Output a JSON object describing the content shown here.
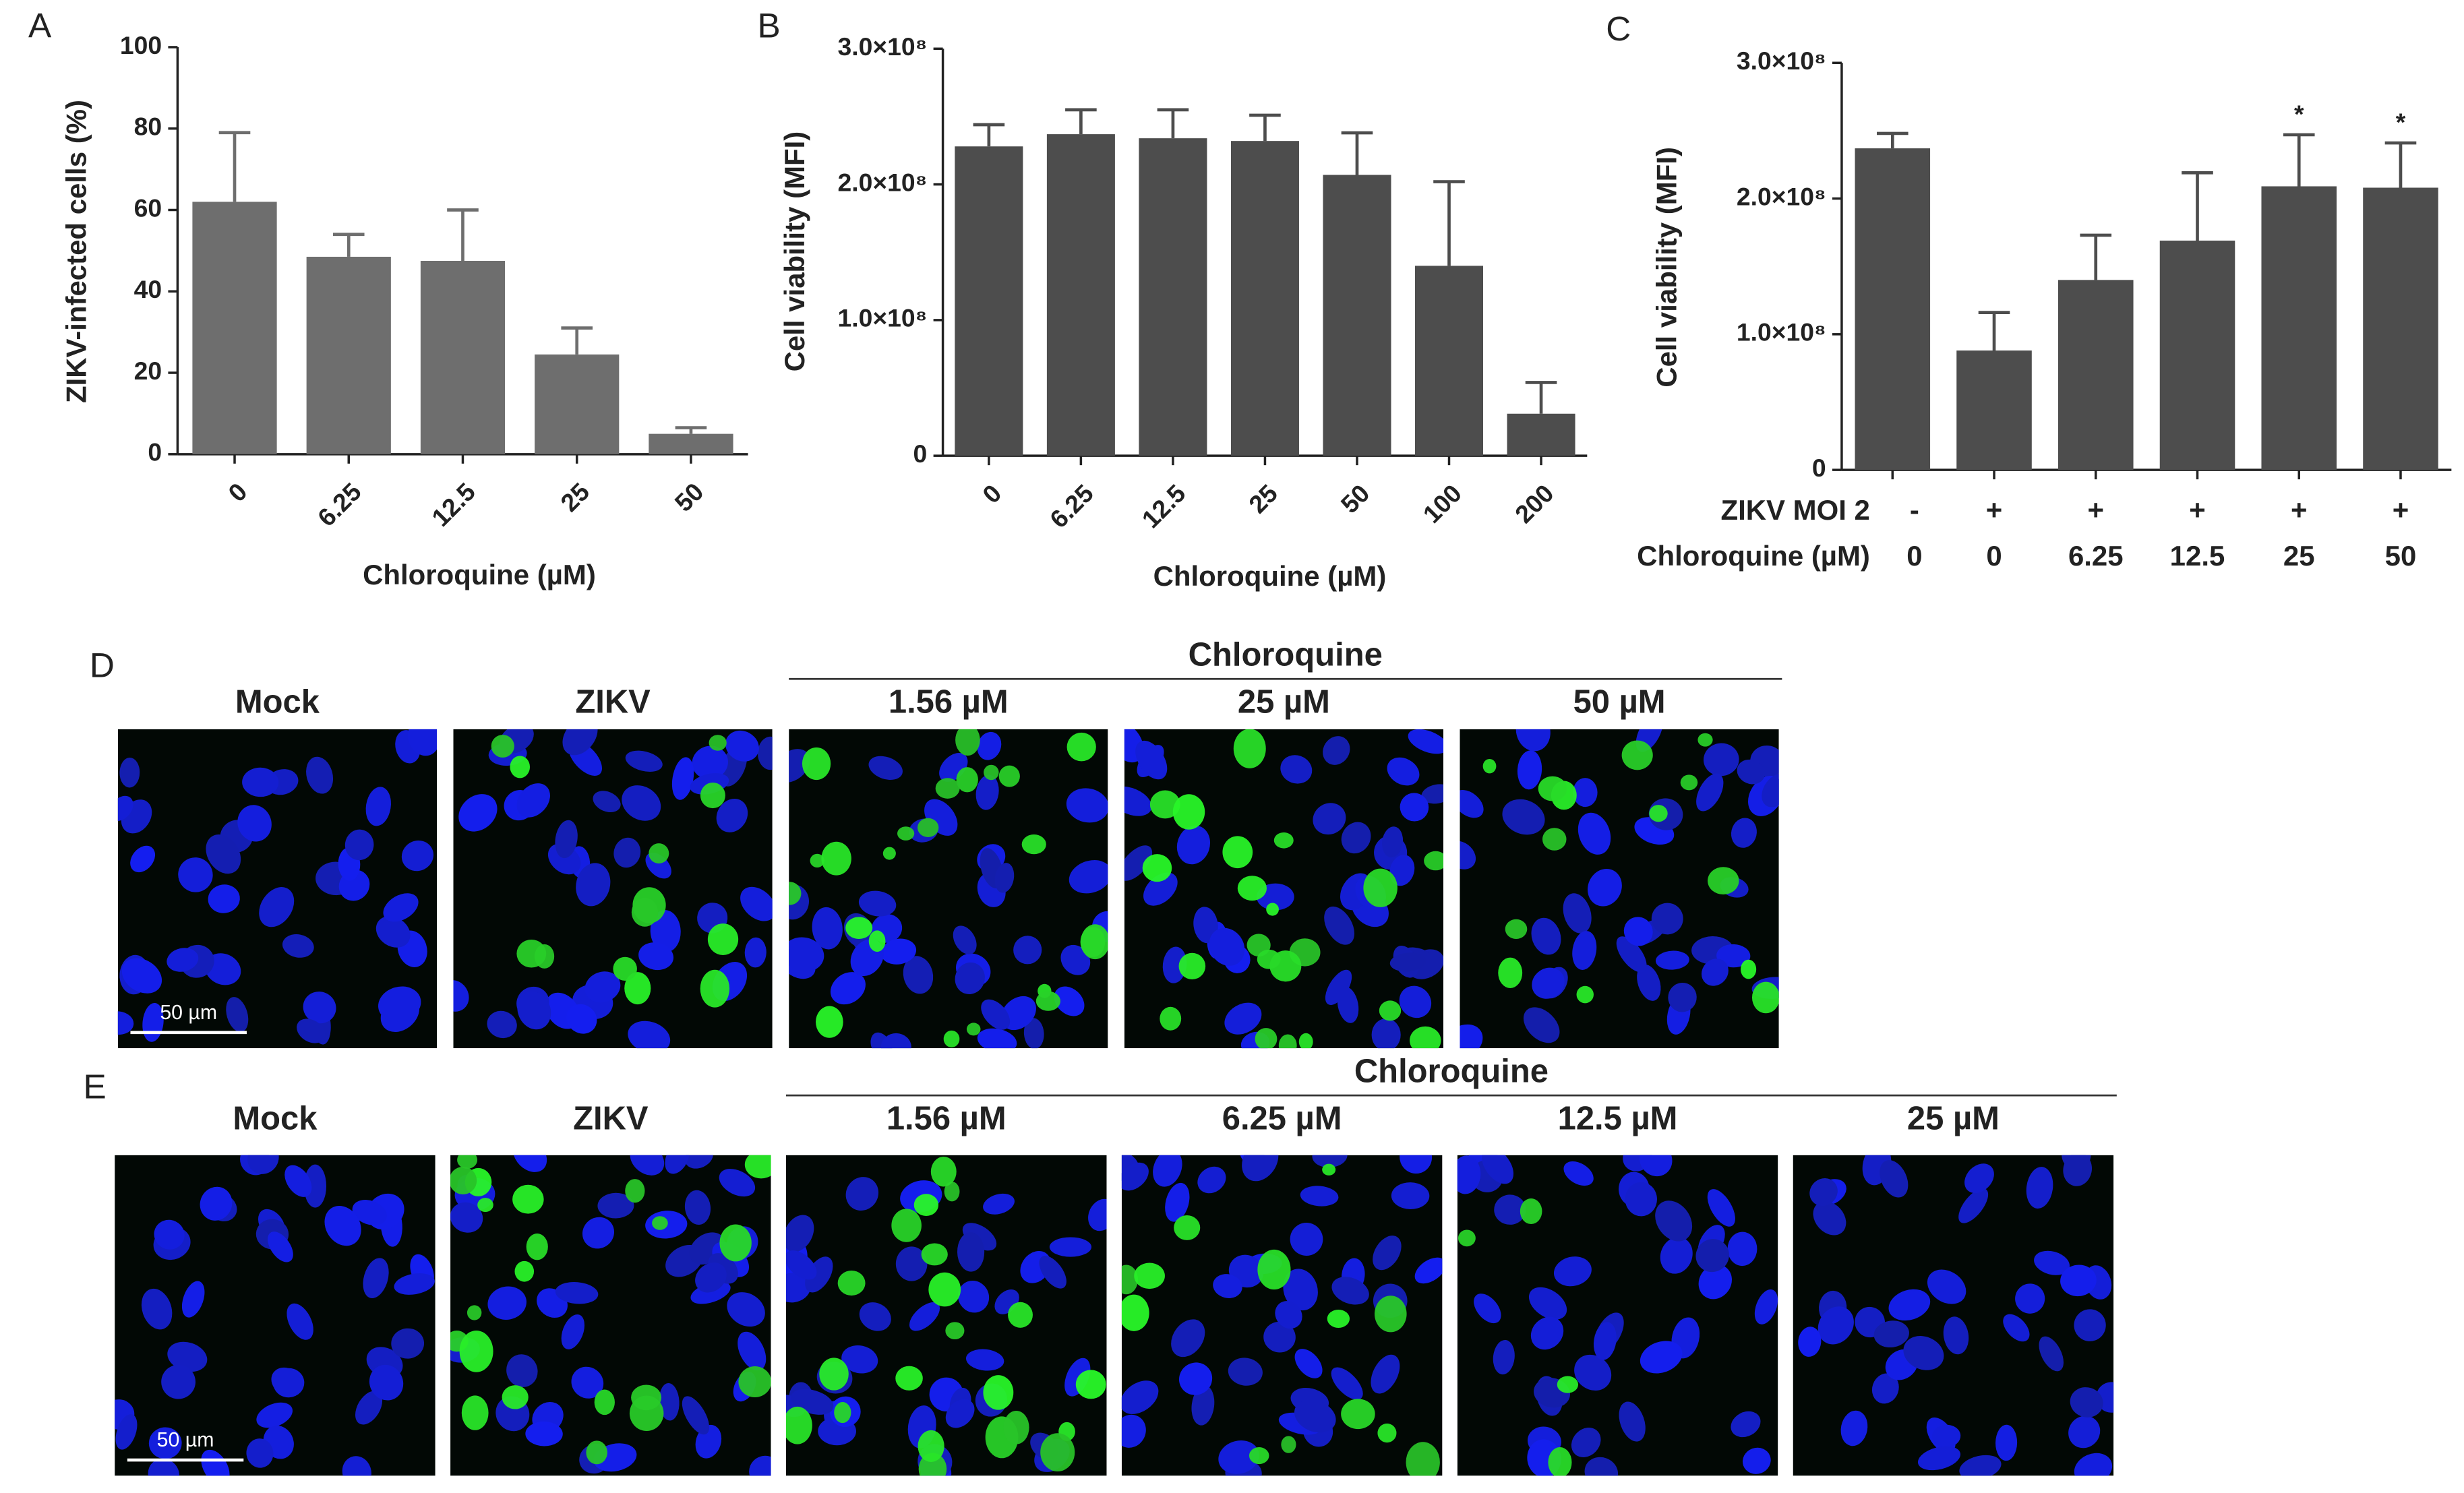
{
  "chart_data": [
    {
      "type": "bar",
      "panel": "A",
      "y_label": "ZIKV-infected cells (%)",
      "x_label": "Chloroquine (µM)",
      "categories": [
        "0",
        "6.25",
        "12.5",
        "25",
        "50"
      ],
      "values": [
        62,
        48.5,
        47.5,
        24.5,
        5
      ],
      "errors": [
        17,
        5.5,
        12.5,
        6.5,
        1.5
      ],
      "color": "#6e6e6e",
      "ylim": [
        0,
        100
      ],
      "yticks": [
        0,
        20,
        40,
        60,
        80,
        100
      ]
    },
    {
      "type": "bar",
      "panel": "B",
      "y_label": "Cell viability (MFI)",
      "x_label": "Chloroquine (µM)",
      "categories": [
        "0",
        "6.25",
        "12.5",
        "25",
        "50",
        "100",
        "200"
      ],
      "values": [
        228000000,
        237000000,
        234000000,
        232000000,
        207000000,
        140000000,
        31000000
      ],
      "errors": [
        16000000,
        18000000,
        21000000,
        19000000,
        31000000,
        62000000,
        23000000
      ],
      "color": "#4d4d4d",
      "ylim": [
        0,
        300000000
      ],
      "yticks": [
        0,
        {
          "value": 100000000,
          "label": "1.0×10⁸"
        },
        {
          "value": 200000000,
          "label": "2.0×10⁸"
        },
        {
          "value": 300000000,
          "label": "3.0×10⁸"
        }
      ]
    },
    {
      "type": "bar",
      "panel": "C",
      "y_label": "Cell viability (MFI)",
      "category_rows": [
        {
          "label": "ZIKV MOI 2",
          "labels": [
            "-",
            "+",
            "+",
            "+",
            "+",
            "+"
          ]
        },
        {
          "label": "Chloroquine (µM)",
          "labels": [
            "0",
            "0",
            "6.25",
            "12.5",
            "25",
            "50"
          ]
        }
      ],
      "values": [
        237000000,
        88000000,
        140000000,
        169000000,
        209000000,
        208000000
      ],
      "errors": [
        11000000,
        28000000,
        33000000,
        50000000,
        38000000,
        33000000
      ],
      "annotations": [
        {
          "index": 4,
          "text": "*"
        },
        {
          "index": 5,
          "text": "*"
        }
      ],
      "color": "#4d4d4d",
      "ylim": [
        0,
        300000000
      ],
      "yticks": [
        0,
        {
          "value": 100000000,
          "label": "1.0×10⁸"
        },
        {
          "value": 200000000,
          "label": "2.0×10⁸"
        },
        {
          "value": 300000000,
          "label": "3.0×10⁸"
        }
      ]
    }
  ],
  "panels": [
    {
      "letter": "D",
      "group_label": "Chloroquine",
      "images": [
        "Mock",
        "ZIKV",
        "1.56 µM",
        "25 µM",
        "50 µM"
      ],
      "scale_bar": "50 µm"
    },
    {
      "letter": "E",
      "group_label": "Chloroquine",
      "images": [
        "Mock",
        "ZIKV",
        "1.56 µM",
        "6.25 µM",
        "12.5 µM",
        "25 µM"
      ],
      "scale_bar": "50 µm"
    }
  ]
}
